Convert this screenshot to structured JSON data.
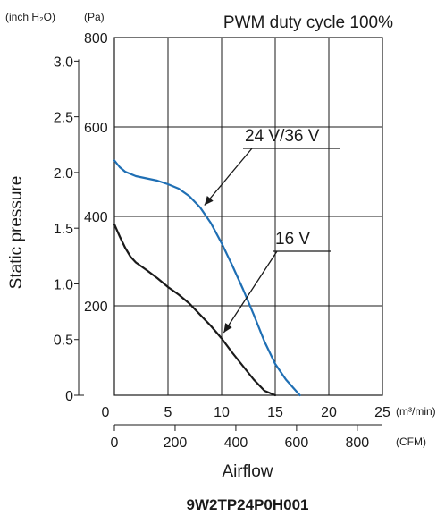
{
  "chart_data": {
    "type": "line",
    "title": "PWM duty cycle 100%",
    "model": "9W2TP24P0H001",
    "xlabel": "Airflow",
    "ylabel": "Static pressure",
    "x_units": {
      "primary": "(m³/min)",
      "secondary": "(CFM)"
    },
    "y_units": {
      "primary": "(Pa)",
      "secondary": "(inch H₂O)"
    },
    "xlim": [
      0,
      25
    ],
    "ylim_pa": [
      0,
      800
    ],
    "grid": true,
    "x_ticks_m3min": [
      "0",
      "5",
      "10",
      "15",
      "20",
      "25"
    ],
    "x_ticks_cfm": [
      "0",
      "200",
      "400",
      "600",
      "800"
    ],
    "y_ticks_pa": [
      "200",
      "400",
      "600",
      "800"
    ],
    "y_ticks_inh2o": [
      "0",
      "0.5",
      "1.0",
      "1.5",
      "2.0",
      "2.5",
      "3.0"
    ],
    "series": [
      {
        "name": "24 V/36 V",
        "color": "#1f6fb4",
        "x": [
          0,
          0.5,
          1,
          2,
          3,
          4,
          5,
          6,
          7,
          8,
          9,
          10,
          11,
          12,
          13,
          14,
          15,
          16,
          17.3
        ],
        "y": [
          525,
          510,
          500,
          490,
          485,
          480,
          472,
          462,
          445,
          420,
          385,
          340,
          290,
          237,
          180,
          120,
          70,
          35,
          0
        ]
      },
      {
        "name": "16 V",
        "color": "#1a1a1a",
        "x": [
          0,
          0.5,
          1,
          1.5,
          2,
          3,
          4,
          5,
          6,
          7,
          8,
          9,
          10,
          11,
          12,
          13,
          14,
          15
        ],
        "y": [
          382,
          355,
          330,
          310,
          297,
          280,
          262,
          242,
          225,
          205,
          180,
          155,
          127,
          95,
          65,
          35,
          10,
          -10
        ]
      }
    ],
    "annotations": [
      {
        "text": "24 V/36 V",
        "series": 0,
        "point": [
          8.4,
          425
        ]
      },
      {
        "text": "16 V",
        "series": 1,
        "point": [
          10.2,
          140
        ]
      }
    ]
  }
}
